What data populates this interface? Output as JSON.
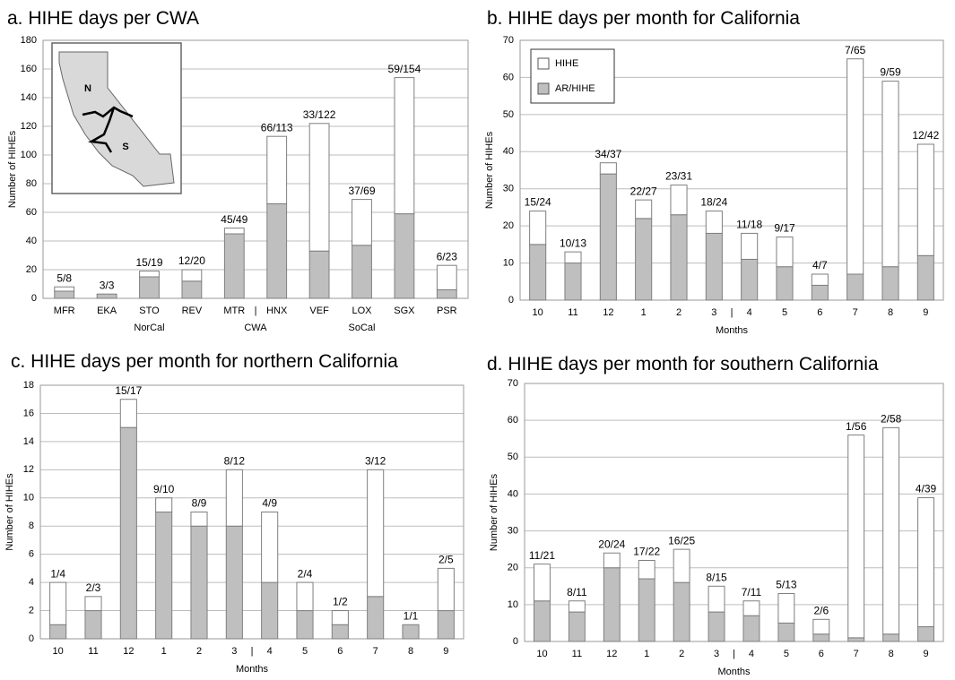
{
  "chart_data": [
    {
      "type": "bar",
      "title": "a. HIHE days per CWA",
      "ylabel": "Number of HIHEs",
      "xlabel": "CWA",
      "categories": [
        "MFR",
        "EKA",
        "STO",
        "REV",
        "MTR",
        "HNX",
        "VEF",
        "LOX",
        "SGX",
        "PSR"
      ],
      "series": [
        {
          "color": "#bfbfbf",
          "values": [
            5,
            3,
            15,
            12,
            45,
            66,
            33,
            37,
            59,
            6
          ]
        },
        {
          "color": "#ffffff",
          "values": [
            3,
            0,
            4,
            8,
            4,
            47,
            89,
            32,
            95,
            17
          ]
        }
      ],
      "bar_labels": [
        "5/8",
        "3/3",
        "15/19",
        "12/20",
        "45/49",
        "66/113",
        "33/122",
        "37/69",
        "59/154",
        "6/23"
      ],
      "group_labels": [
        "NorCal",
        "SoCal"
      ],
      "separator": "|",
      "map_labels": [
        "N",
        "S"
      ],
      "ylim": [
        0,
        180
      ],
      "yticks": [
        0,
        20,
        40,
        60,
        80,
        100,
        120,
        140,
        160,
        180
      ],
      "grid": true
    },
    {
      "type": "bar",
      "title": "b. HIHE days per month for California",
      "ylabel": "Number of HIHEs",
      "xlabel": "Months",
      "categories": [
        "10",
        "11",
        "12",
        "1",
        "2",
        "3",
        "4",
        "5",
        "6",
        "7",
        "8",
        "9"
      ],
      "series": [
        {
          "name": "AR/HIHE",
          "color": "#bfbfbf",
          "values": [
            15,
            10,
            34,
            22,
            23,
            18,
            11,
            9,
            4,
            7,
            9,
            12
          ]
        },
        {
          "name": "HIHE",
          "color": "#ffffff",
          "values": [
            9,
            3,
            3,
            5,
            8,
            6,
            7,
            8,
            3,
            58,
            50,
            30
          ]
        }
      ],
      "bar_labels": [
        "15/24",
        "10/13",
        "34/37",
        "22/27",
        "23/31",
        "18/24",
        "11/18",
        "9/17",
        "4/7",
        "7/65",
        "9/59",
        "12/42"
      ],
      "separator": "|",
      "legend": "top-left",
      "ylim": [
        0,
        70
      ],
      "yticks": [
        0,
        10,
        20,
        30,
        40,
        50,
        60,
        70
      ],
      "grid": true
    },
    {
      "type": "bar",
      "title": "c. HIHE days per month for northern California",
      "ylabel": "Number of HIHEs",
      "xlabel": "Months",
      "categories": [
        "10",
        "11",
        "12",
        "1",
        "2",
        "3",
        "4",
        "5",
        "6",
        "7",
        "8",
        "9"
      ],
      "series": [
        {
          "color": "#bfbfbf",
          "values": [
            1,
            2,
            15,
            9,
            8,
            8,
            4,
            2,
            1,
            3,
            1,
            2
          ]
        },
        {
          "color": "#ffffff",
          "values": [
            3,
            1,
            2,
            1,
            1,
            4,
            5,
            2,
            1,
            9,
            0,
            3
          ]
        }
      ],
      "bar_labels": [
        "1/4",
        "2/3",
        "15/17",
        "9/10",
        "8/9",
        "8/12",
        "4/9",
        "2/4",
        "1/2",
        "3/12",
        "1/1",
        "2/5"
      ],
      "separator": "|",
      "ylim": [
        0,
        18
      ],
      "yticks": [
        0,
        2,
        4,
        6,
        8,
        10,
        12,
        14,
        16,
        18
      ],
      "grid": true
    },
    {
      "type": "bar",
      "title": "d. HIHE days per month for southern California",
      "ylabel": "Number of HIHEs",
      "xlabel": "Months",
      "categories": [
        "10",
        "11",
        "12",
        "1",
        "2",
        "3",
        "4",
        "5",
        "6",
        "7",
        "8",
        "9"
      ],
      "series": [
        {
          "color": "#bfbfbf",
          "values": [
            11,
            8,
            20,
            17,
            16,
            8,
            7,
            5,
            2,
            1,
            2,
            4
          ]
        },
        {
          "color": "#ffffff",
          "values": [
            10,
            3,
            4,
            5,
            9,
            7,
            4,
            8,
            4,
            55,
            56,
            35
          ]
        }
      ],
      "bar_labels": [
        "11/21",
        "8/11",
        "20/24",
        "17/22",
        "16/25",
        "8/15",
        "7/11",
        "5/13",
        "2/6",
        "1/56",
        "2/58",
        "4/39"
      ],
      "separator": "|",
      "ylim": [
        0,
        70
      ],
      "yticks": [
        0,
        10,
        20,
        30,
        40,
        50,
        60,
        70
      ],
      "grid": true
    }
  ]
}
